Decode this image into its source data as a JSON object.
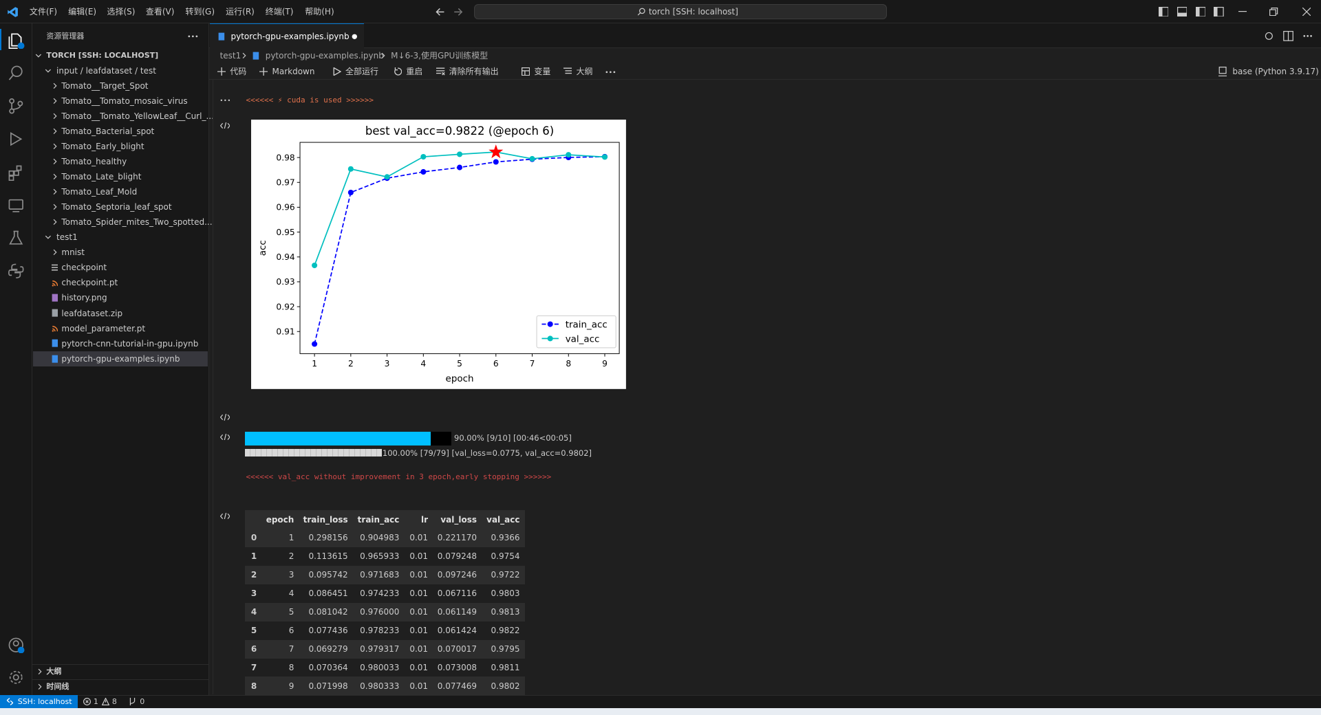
{
  "titlebar": {
    "menu": [
      "文件(F)",
      "编辑(E)",
      "选择(S)",
      "查看(V)",
      "转到(G)",
      "运行(R)",
      "终端(T)",
      "帮助(H)"
    ],
    "search": "torch [SSH: localhost]"
  },
  "sidebar": {
    "title": "资源管理器",
    "root": "TORCH [SSH: LOCALHOST]",
    "tree": [
      {
        "label": "input / leafdataset / test",
        "children": [
          {
            "label": "Tomato__Target_Spot",
            "children": []
          },
          {
            "label": "Tomato__Tomato_mosaic_virus",
            "children": []
          },
          {
            "label": "Tomato__Tomato_YellowLeaf__Curl_...",
            "children": []
          },
          {
            "label": "Tomato_Bacterial_spot",
            "children": []
          },
          {
            "label": "Tomato_Early_blight",
            "children": []
          },
          {
            "label": "Tomato_healthy",
            "children": []
          },
          {
            "label": "Tomato_Late_blight",
            "children": []
          },
          {
            "label": "Tomato_Leaf_Mold",
            "children": []
          },
          {
            "label": "Tomato_Septoria_leaf_spot",
            "children": []
          },
          {
            "label": "Tomato_Spider_mites_Two_spotted...",
            "children": []
          }
        ]
      },
      {
        "label": "test1",
        "children": [
          {
            "label": "mnist",
            "children": []
          },
          {
            "label": "checkpoint"
          },
          {
            "label": "checkpoint.pt"
          },
          {
            "label": "history.png"
          },
          {
            "label": "leafdataset.zip"
          },
          {
            "label": "model_parameter.pt"
          },
          {
            "label": "pytorch-cnn-tutorial-in-gpu.ipynb"
          },
          {
            "label": "pytorch-gpu-examples.ipynb"
          }
        ]
      }
    ],
    "sections": [
      "大纲",
      "时间线"
    ]
  },
  "editor": {
    "tab": "pytorch-gpu-examples.ipynb",
    "breadcrumb": [
      "test1",
      "pytorch-gpu-examples.ipynb",
      "M↓6-3,使用GPU训练模型"
    ],
    "toolbar": [
      "代码",
      "Markdown",
      "全部运行",
      "重启",
      "清除所有输出",
      "变量",
      "大纲"
    ],
    "kernel": "base (Python 3.9.17)"
  },
  "outputs": {
    "cuda": "<<<<<< ⚡ cuda is used >>>>>>",
    "progress": [
      {
        "percent": 90,
        "text": "90.00% [9/10] [00:46<00:05]"
      },
      {
        "percent": 100,
        "text": "100.00% [79/79] [val_loss=0.0775, val_acc=0.9802]"
      }
    ],
    "early_stop": "<<<<<< val_acc without improvement in 3 epoch,early stopping >>>>>>"
  },
  "table": {
    "columns": [
      "epoch",
      "train_loss",
      "train_acc",
      "lr",
      "val_loss",
      "val_acc"
    ],
    "rows": [
      [
        "0",
        "1",
        "0.298156",
        "0.904983",
        "0.01",
        "0.221170",
        "0.9366"
      ],
      [
        "1",
        "2",
        "0.113615",
        "0.965933",
        "0.01",
        "0.079248",
        "0.9754"
      ],
      [
        "2",
        "3",
        "0.095742",
        "0.971683",
        "0.01",
        "0.097246",
        "0.9722"
      ],
      [
        "3",
        "4",
        "0.086451",
        "0.974233",
        "0.01",
        "0.067116",
        "0.9803"
      ],
      [
        "4",
        "5",
        "0.081042",
        "0.976000",
        "0.01",
        "0.061149",
        "0.9813"
      ],
      [
        "5",
        "6",
        "0.077436",
        "0.978233",
        "0.01",
        "0.061424",
        "0.9822"
      ],
      [
        "6",
        "7",
        "0.069279",
        "0.979317",
        "0.01",
        "0.070017",
        "0.9795"
      ],
      [
        "7",
        "8",
        "0.070364",
        "0.980033",
        "0.01",
        "0.073008",
        "0.9811"
      ],
      [
        "8",
        "9",
        "0.071998",
        "0.980333",
        "0.01",
        "0.077469",
        "0.9802"
      ]
    ]
  },
  "statusbar": {
    "remote": "SSH: localhost",
    "errors": 1,
    "warnings": 8,
    "ports": 0
  },
  "chart_data": {
    "type": "line",
    "title": "best val_acc=0.9822 (@epoch 6)",
    "x_label": "epoch",
    "y_label": "acc",
    "x": [
      1,
      2,
      3,
      4,
      5,
      6,
      7,
      8,
      9
    ],
    "series": [
      {
        "name": "train_acc",
        "color": "#0000ff",
        "dashed": true,
        "values": [
          0.904983,
          0.965933,
          0.971683,
          0.974233,
          0.976,
          0.978233,
          0.979317,
          0.980033,
          0.980333
        ]
      },
      {
        "name": "val_acc",
        "color": "#00bfbf",
        "dashed": false,
        "values": [
          0.9366,
          0.9754,
          0.9722,
          0.9803,
          0.9813,
          0.9822,
          0.9795,
          0.9811,
          0.9802
        ]
      }
    ],
    "best_marker_color": "#ff0000",
    "xlim": [
      0.6,
      9.4
    ],
    "ylim": [
      0.9011,
      0.9861
    ],
    "xticks": [
      1,
      2,
      3,
      4,
      5,
      6,
      7,
      8,
      9
    ],
    "yticks": [
      0.91,
      0.92,
      0.93,
      0.94,
      0.95,
      0.96,
      0.97,
      0.98
    ],
    "legend": "lower right"
  }
}
